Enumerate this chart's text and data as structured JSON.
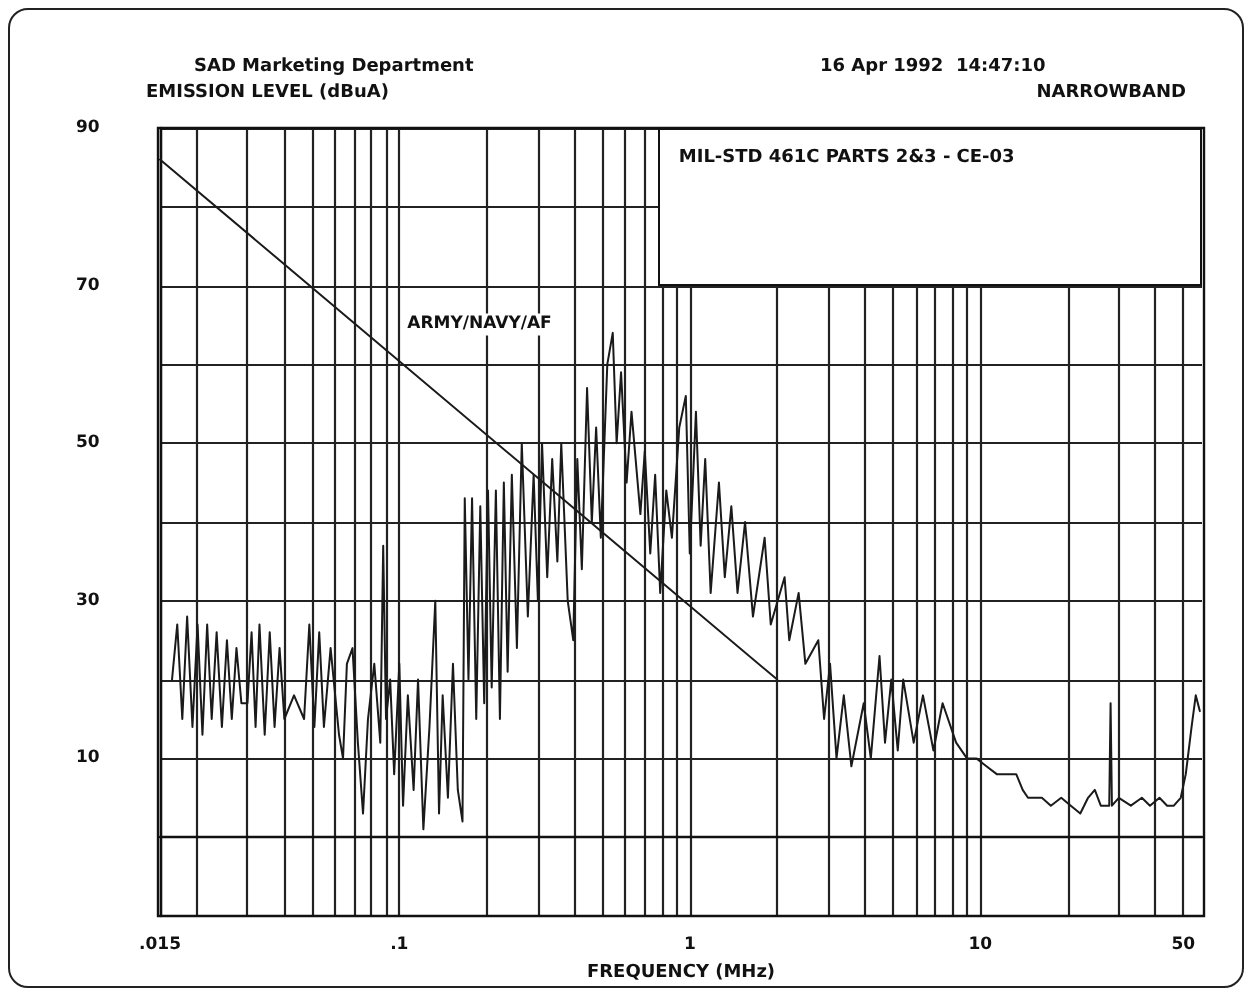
{
  "chart_data": {
    "type": "line",
    "title": "SAD Marketing Department",
    "subtitle": "16 Apr 1992  14:47:10",
    "xlabel": "FREQUENCY (MHz)",
    "ylabel": "EMISSION LEVEL (dBuA)",
    "annotations": [
      "NARROWBAND",
      "MIL-STD 461C PARTS 2&3 - CE-03",
      "ARMY/NAVY/AF"
    ],
    "xlim": [
      0.015,
      58
    ],
    "ylim": [
      -10,
      90
    ],
    "xticks": [
      {
        "value": 0.015,
        "label": ".015"
      },
      {
        "value": 0.02,
        "label": null
      },
      {
        "value": 0.03,
        "label": null
      },
      {
        "value": 0.04,
        "label": null
      },
      {
        "value": 0.05,
        "label": null
      },
      {
        "value": 0.06,
        "label": null
      },
      {
        "value": 0.07,
        "label": null
      },
      {
        "value": 0.08,
        "label": null
      },
      {
        "value": 0.09,
        "label": null
      },
      {
        "value": 0.1,
        "label": ".1"
      },
      {
        "value": 0.2,
        "label": null
      },
      {
        "value": 0.3,
        "label": null
      },
      {
        "value": 0.4,
        "label": null
      },
      {
        "value": 0.5,
        "label": null
      },
      {
        "value": 0.6,
        "label": null
      },
      {
        "value": 0.7,
        "label": null
      },
      {
        "value": 0.8,
        "label": null
      },
      {
        "value": 0.9,
        "label": null
      },
      1,
      {
        "value": 2,
        "label": null
      },
      {
        "value": 3,
        "label": null
      },
      {
        "value": 4,
        "label": null
      },
      {
        "value": 5,
        "label": null
      },
      {
        "value": 6,
        "label": null
      },
      {
        "value": 7,
        "label": null
      },
      {
        "value": 8,
        "label": null
      },
      {
        "value": 9,
        "label": null
      },
      10,
      {
        "value": 20,
        "label": null
      },
      {
        "value": 30,
        "label": null
      },
      {
        "value": 40,
        "label": null
      },
      50
    ],
    "yticks": [
      {
        "value": 0,
        "label": null
      },
      10,
      {
        "value": 20,
        "label": null
      },
      30,
      {
        "value": 40,
        "label": null
      },
      50,
      {
        "value": 60,
        "label": null
      },
      70,
      {
        "value": 80,
        "label": null
      },
      90
    ],
    "log": "x",
    "grid": true,
    "marker": "none",
    "line_style": "solid",
    "series": [
      {
        "color": "#1a1a1a",
        "x": [
          0.0165,
          0.0172,
          0.0179,
          0.0186,
          0.0194,
          0.0202,
          0.021,
          0.0218,
          0.0226,
          0.0235,
          0.0245,
          0.0255,
          0.0265,
          0.0275,
          0.0286,
          0.03,
          0.031,
          0.032,
          0.033,
          0.0344,
          0.0358,
          0.0372,
          0.0387,
          0.0402,
          0.0434,
          0.047,
          0.049,
          0.051,
          0.053,
          0.055,
          0.058,
          0.062,
          0.064,
          0.066,
          0.069,
          0.072,
          0.075,
          0.078,
          0.082,
          0.086,
          0.088,
          0.09,
          0.093,
          0.096,
          0.1,
          0.103,
          0.107,
          0.112,
          0.116,
          0.121,
          0.127,
          0.133,
          0.137,
          0.141,
          0.147,
          0.153,
          0.159,
          0.165,
          0.168,
          0.173,
          0.178,
          0.184,
          0.19,
          0.196,
          0.202,
          0.208,
          0.215,
          0.222,
          0.229,
          0.236,
          0.244,
          0.254,
          0.264,
          0.277,
          0.29,
          0.3,
          0.31,
          0.323,
          0.336,
          0.35,
          0.361,
          0.38,
          0.397,
          0.41,
          0.425,
          0.443,
          0.46,
          0.476,
          0.494,
          0.52,
          0.543,
          0.56,
          0.58,
          0.606,
          0.63,
          0.676,
          0.7,
          0.731,
          0.76,
          0.791,
          0.83,
          0.868,
          0.92,
          0.969,
          1.0,
          1.05,
          1.09,
          1.13,
          1.18,
          1.26,
          1.32,
          1.39,
          1.46,
          1.55,
          1.65,
          1.81,
          1.9,
          2.12,
          2.2,
          2.37,
          2.5,
          2.77,
          2.9,
          3.04,
          3.2,
          3.39,
          3.6,
          3.97,
          4.2,
          4.5,
          4.7,
          4.94,
          5.2,
          5.43,
          5.9,
          6.35,
          6.9,
          7.42,
          8.26,
          9.0,
          9.7,
          10.5,
          11.4,
          12.3,
          13.3,
          14.0,
          14.6,
          16.3,
          17.5,
          19.0,
          20.5,
          22.1,
          23.5,
          24.8,
          26.0,
          27.8,
          28.1,
          28.4,
          30,
          33,
          36,
          38.4,
          41.4,
          44,
          46.4,
          49,
          51,
          53.4,
          55.2,
          57
        ],
        "values": [
          20,
          27,
          15,
          28,
          14,
          27,
          13,
          27,
          15,
          26,
          14,
          25,
          15,
          24,
          17,
          17,
          26,
          14,
          27,
          13,
          26,
          14,
          24,
          15,
          18,
          15,
          27,
          14,
          26,
          14,
          24,
          13,
          10,
          22,
          24,
          12,
          3,
          15,
          22,
          12,
          37,
          15,
          20,
          8,
          22,
          4,
          18,
          6,
          20,
          1,
          14,
          30,
          3,
          18,
          5,
          22,
          6,
          2,
          43,
          20,
          43,
          15,
          42,
          17,
          44,
          19,
          44,
          15,
          45,
          21,
          46,
          24,
          50,
          28,
          46,
          30,
          50,
          33,
          48,
          35,
          50,
          30,
          25,
          48,
          34,
          57,
          40,
          52,
          38,
          60,
          64,
          50,
          59,
          45,
          54,
          41,
          49,
          36,
          46,
          31,
          44,
          38,
          52,
          56,
          36,
          54,
          37,
          48,
          31,
          45,
          33,
          42,
          31,
          40,
          28,
          38,
          27,
          33,
          25,
          31,
          22,
          25,
          15,
          22,
          10,
          18,
          9,
          17,
          10,
          23,
          12,
          20,
          11,
          20,
          12,
          18,
          11,
          17,
          12,
          10,
          10,
          9,
          8,
          8,
          8,
          6,
          5,
          5,
          4,
          5,
          4,
          3,
          5,
          6,
          4,
          4,
          17,
          4,
          5,
          4,
          5,
          4,
          5,
          4,
          4,
          5,
          8,
          14,
          18,
          16
        ]
      },
      {
        "color": "#1a1a1a",
        "x": [
          0.015,
          2
        ],
        "values": [
          86,
          20
        ]
      }
    ]
  }
}
